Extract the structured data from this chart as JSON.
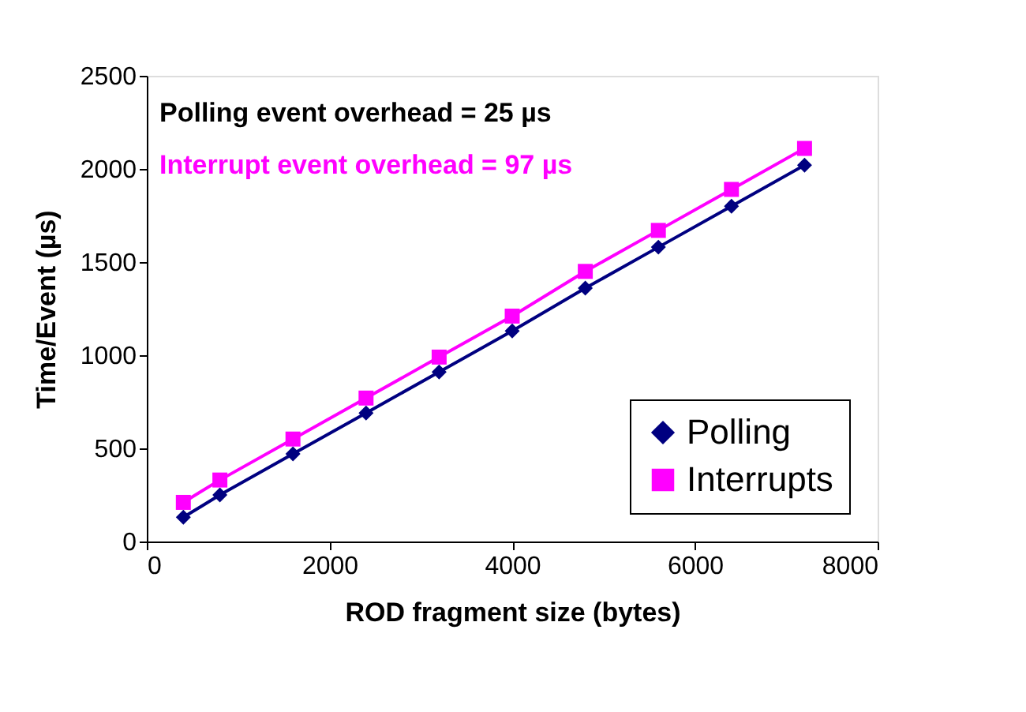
{
  "chart_data": {
    "type": "line",
    "xlabel": "ROD fragment size (bytes)",
    "ylabel": "Time/Event (µs)",
    "x": [
      400,
      800,
      1600,
      2400,
      3200,
      4000,
      4800,
      5600,
      6400,
      7200
    ],
    "series": [
      {
        "name": "Polling",
        "color": "#000080",
        "marker": "diamond",
        "values": [
          130,
          250,
          470,
          690,
          910,
          1130,
          1360,
          1580,
          1800,
          2020
        ]
      },
      {
        "name": "Interrupts",
        "color": "#ff00ff",
        "marker": "square",
        "values": [
          210,
          330,
          550,
          770,
          990,
          1210,
          1450,
          1670,
          1890,
          2110
        ]
      }
    ],
    "xlim": [
      0,
      8000
    ],
    "xticks": [
      0,
      2000,
      4000,
      6000,
      8000
    ],
    "ylim": [
      0,
      2500
    ],
    "yticks": [
      0,
      500,
      1000,
      1500,
      2000,
      2500
    ],
    "grid": false,
    "legend": "bottom right",
    "line_style": "solid",
    "annotations": [
      "Polling event overhead = 25 µs",
      "Interrupt event overhead = 97 µs"
    ]
  }
}
